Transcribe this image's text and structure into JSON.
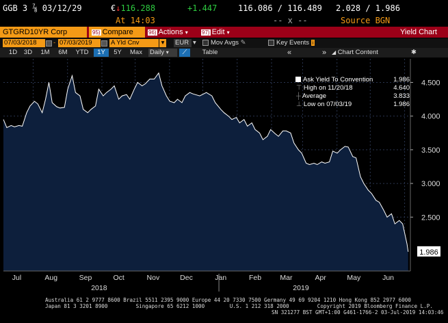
{
  "header": {
    "security": "GGB 3 ⅞ 03/12/29",
    "currency_symbol": "€",
    "arrow": "↓",
    "price": "116.288",
    "change": "+1.447",
    "bid_ask": "116.086 / 116.489",
    "yields": "2.028 / 1.986",
    "time_label": "At 14:03",
    "placeholder": "-- x --",
    "source": "Source BGN"
  },
  "command_bar": {
    "ticker": "GTGRD10YR Corp",
    "compare_num": "95)",
    "compare": "Compare",
    "actions_num": "96)",
    "actions": "Actions",
    "edit_num": "97)",
    "edit": "Edit",
    "title": "Yield Chart"
  },
  "controls": {
    "start_date": "07/03/2018",
    "end_date": "07/03/2019",
    "field": "A Yld Cnv",
    "currency": "EUR",
    "mov_avgs": "Mov Avgs",
    "key_events": "Key Events",
    "ranges": [
      "1D",
      "3D",
      "1M",
      "6M",
      "YTD",
      "1Y",
      "5Y",
      "Max"
    ],
    "active_range": "1Y",
    "period": "Daily",
    "table": "Table",
    "chart_content": "Chart Content"
  },
  "legend": {
    "title": "Ask Yield To Convention",
    "title_value": "1.986",
    "high_label": "High on 11/20/18",
    "high_value": "4.640",
    "avg_label": "Average",
    "avg_value": "3.833",
    "low_label": "Low on 07/03/19",
    "low_value": "1.986"
  },
  "colors": {
    "background": "#000000",
    "fill": "#0d1f3c",
    "line": "#ffffff",
    "accent_red": "#9c0018",
    "accent_orange": "#f49a16",
    "positive": "#2ecc40",
    "negative": "#ff3030"
  },
  "chart_data": {
    "type": "area",
    "series": [
      {
        "name": "Ask Yield To Convention",
        "values": [
          {
            "x": "2018-07-03",
            "y": 3.95
          },
          {
            "x": "2018-07-06",
            "y": 3.83
          },
          {
            "x": "2018-07-10",
            "y": 3.86
          },
          {
            "x": "2018-07-13",
            "y": 3.84
          },
          {
            "x": "2018-07-17",
            "y": 3.86
          },
          {
            "x": "2018-07-20",
            "y": 3.85
          },
          {
            "x": "2018-07-24",
            "y": 4.05
          },
          {
            "x": "2018-07-27",
            "y": 4.15
          },
          {
            "x": "2018-07-31",
            "y": 4.22
          },
          {
            "x": "2018-08-03",
            "y": 4.18
          },
          {
            "x": "2018-08-07",
            "y": 4.05
          },
          {
            "x": "2018-08-10",
            "y": 4.25
          },
          {
            "x": "2018-08-13",
            "y": 4.5
          },
          {
            "x": "2018-08-16",
            "y": 4.2
          },
          {
            "x": "2018-08-20",
            "y": 4.14
          },
          {
            "x": "2018-08-23",
            "y": 4.12
          },
          {
            "x": "2018-08-27",
            "y": 4.13
          },
          {
            "x": "2018-08-30",
            "y": 4.4
          },
          {
            "x": "2018-09-03",
            "y": 4.6
          },
          {
            "x": "2018-09-06",
            "y": 4.35
          },
          {
            "x": "2018-09-10",
            "y": 4.3
          },
          {
            "x": "2018-09-13",
            "y": 4.1
          },
          {
            "x": "2018-09-17",
            "y": 4.05
          },
          {
            "x": "2018-09-20",
            "y": 4.1
          },
          {
            "x": "2018-09-24",
            "y": 4.15
          },
          {
            "x": "2018-09-27",
            "y": 4.4
          },
          {
            "x": "2018-10-01",
            "y": 4.3
          },
          {
            "x": "2018-10-04",
            "y": 4.35
          },
          {
            "x": "2018-10-08",
            "y": 4.4
          },
          {
            "x": "2018-10-11",
            "y": 4.45
          },
          {
            "x": "2018-10-15",
            "y": 4.25
          },
          {
            "x": "2018-10-18",
            "y": 4.3
          },
          {
            "x": "2018-10-22",
            "y": 4.32
          },
          {
            "x": "2018-10-25",
            "y": 4.25
          },
          {
            "x": "2018-10-29",
            "y": 4.4
          },
          {
            "x": "2018-11-01",
            "y": 4.5
          },
          {
            "x": "2018-11-05",
            "y": 4.45
          },
          {
            "x": "2018-11-08",
            "y": 4.48
          },
          {
            "x": "2018-11-12",
            "y": 4.55
          },
          {
            "x": "2018-11-16",
            "y": 4.55
          },
          {
            "x": "2018-11-20",
            "y": 4.64
          },
          {
            "x": "2018-11-23",
            "y": 4.45
          },
          {
            "x": "2018-11-27",
            "y": 4.3
          },
          {
            "x": "2018-11-30",
            "y": 4.22
          },
          {
            "x": "2018-12-04",
            "y": 4.2
          },
          {
            "x": "2018-12-07",
            "y": 4.25
          },
          {
            "x": "2018-12-11",
            "y": 4.2
          },
          {
            "x": "2018-12-14",
            "y": 4.3
          },
          {
            "x": "2018-12-18",
            "y": 4.35
          },
          {
            "x": "2018-12-21",
            "y": 4.33
          },
          {
            "x": "2018-12-27",
            "y": 4.3
          },
          {
            "x": "2019-01-02",
            "y": 4.35
          },
          {
            "x": "2019-01-07",
            "y": 4.3
          },
          {
            "x": "2019-01-10",
            "y": 4.2
          },
          {
            "x": "2019-01-15",
            "y": 4.1
          },
          {
            "x": "2019-01-18",
            "y": 4.05
          },
          {
            "x": "2019-01-22",
            "y": 4.0
          },
          {
            "x": "2019-01-25",
            "y": 3.95
          },
          {
            "x": "2019-01-29",
            "y": 3.98
          },
          {
            "x": "2019-02-01",
            "y": 3.9
          },
          {
            "x": "2019-02-05",
            "y": 3.95
          },
          {
            "x": "2019-02-08",
            "y": 3.85
          },
          {
            "x": "2019-02-12",
            "y": 3.9
          },
          {
            "x": "2019-02-15",
            "y": 3.8
          },
          {
            "x": "2019-02-19",
            "y": 3.75
          },
          {
            "x": "2019-02-22",
            "y": 3.65
          },
          {
            "x": "2019-02-26",
            "y": 3.7
          },
          {
            "x": "2019-03-01",
            "y": 3.8
          },
          {
            "x": "2019-03-05",
            "y": 3.74
          },
          {
            "x": "2019-03-08",
            "y": 3.7
          },
          {
            "x": "2019-03-12",
            "y": 3.78
          },
          {
            "x": "2019-03-15",
            "y": 3.78
          },
          {
            "x": "2019-03-19",
            "y": 3.75
          },
          {
            "x": "2019-03-22",
            "y": 3.6
          },
          {
            "x": "2019-03-26",
            "y": 3.5
          },
          {
            "x": "2019-03-29",
            "y": 3.45
          },
          {
            "x": "2019-04-02",
            "y": 3.3
          },
          {
            "x": "2019-04-05",
            "y": 3.28
          },
          {
            "x": "2019-04-09",
            "y": 3.3
          },
          {
            "x": "2019-04-12",
            "y": 3.28
          },
          {
            "x": "2019-04-16",
            "y": 3.32
          },
          {
            "x": "2019-04-19",
            "y": 3.3
          },
          {
            "x": "2019-04-23",
            "y": 3.32
          },
          {
            "x": "2019-04-26",
            "y": 3.48
          },
          {
            "x": "2019-04-30",
            "y": 3.45
          },
          {
            "x": "2019-05-03",
            "y": 3.5
          },
          {
            "x": "2019-05-07",
            "y": 3.55
          },
          {
            "x": "2019-05-10",
            "y": 3.54
          },
          {
            "x": "2019-05-14",
            "y": 3.4
          },
          {
            "x": "2019-05-17",
            "y": 3.38
          },
          {
            "x": "2019-05-21",
            "y": 3.1
          },
          {
            "x": "2019-05-24",
            "y": 3.0
          },
          {
            "x": "2019-05-28",
            "y": 2.9
          },
          {
            "x": "2019-05-31",
            "y": 2.85
          },
          {
            "x": "2019-06-04",
            "y": 2.75
          },
          {
            "x": "2019-06-07",
            "y": 2.72
          },
          {
            "x": "2019-06-11",
            "y": 2.6
          },
          {
            "x": "2019-06-14",
            "y": 2.5
          },
          {
            "x": "2019-06-18",
            "y": 2.55
          },
          {
            "x": "2019-06-21",
            "y": 2.4
          },
          {
            "x": "2019-06-25",
            "y": 2.45
          },
          {
            "x": "2019-06-28",
            "y": 2.4
          },
          {
            "x": "2019-07-02",
            "y": 2.1
          },
          {
            "x": "2019-07-03",
            "y": 1.986
          }
        ]
      }
    ],
    "y_ticks": [
      "4.500",
      "4.000",
      "3.500",
      "3.000",
      "2.500"
    ],
    "y_tick_values": [
      4.5,
      4.0,
      3.5,
      3.0,
      2.5
    ],
    "ylim": [
      1.7,
      4.85
    ],
    "xlim": [
      "2018-07-03",
      "2019-07-05"
    ],
    "x_ticks": [
      {
        "label": "Jul",
        "date": "2018-07-15"
      },
      {
        "label": "Aug",
        "date": "2018-08-15"
      },
      {
        "label": "Sep",
        "date": "2018-09-15"
      },
      {
        "label": "Oct",
        "date": "2018-10-15"
      },
      {
        "label": "Nov",
        "date": "2018-11-15"
      },
      {
        "label": "Dec",
        "date": "2018-12-15"
      },
      {
        "label": "Jan",
        "date": "2019-01-15"
      },
      {
        "label": "Feb",
        "date": "2019-02-15"
      },
      {
        "label": "Mar",
        "date": "2019-03-15"
      },
      {
        "label": "Apr",
        "date": "2019-04-15"
      },
      {
        "label": "May",
        "date": "2019-05-15"
      },
      {
        "label": "Jun",
        "date": "2019-06-15"
      }
    ],
    "year_labels": [
      {
        "label": "2018",
        "date": "2018-10-01"
      },
      {
        "label": "2019",
        "date": "2019-04-01"
      }
    ],
    "year_divider": "2019-01-01",
    "last_value_label": "1.986",
    "grid": true
  },
  "footer": {
    "line1": "Australia 61 2 9777 8600 Brazil 5511 2395 9000 Europe 44 20 7330 7500 Germany 49 69 9204 1210 Hong Kong 852 2977 6000",
    "line2": "Japan 81 3 3201 8900         Singapore 65 6212 1000        U.S. 1 212 318 2000         Copyright 2019 Bloomberg Finance L.P.",
    "line3": "SN 321277 BST  GMT+1:00 G461-1766-2 03-Jul-2019 14:03:46"
  }
}
